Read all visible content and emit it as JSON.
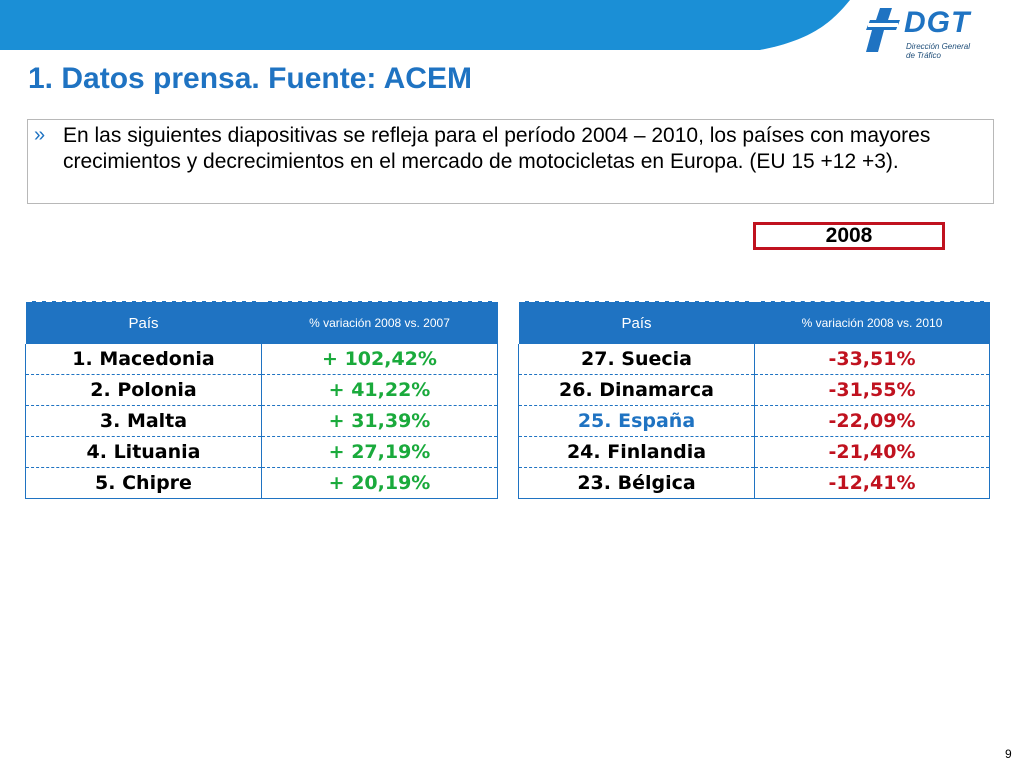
{
  "header": {
    "title": "1. Datos prensa. Fuente: ACEM",
    "logo_text": "DGT",
    "logo_subtitle_line1": "Dirección General",
    "logo_subtitle_line2": "de Tráfico"
  },
  "intro": {
    "bullet": "»",
    "text": "En las siguientes diapositivas se refleja para el período 2004 – 2010, los países con mayores crecimientos y decrecimientos en el mercado de motocicletas en Europa. (EU 15 +12 +3)."
  },
  "year_label": "2008",
  "colors": {
    "accent_blue": "#1f73c2",
    "positive_green": "#1aaa3c",
    "negative_red": "#c0121f",
    "highlight_blue": "#1f73c2"
  },
  "growth_table": {
    "headers": [
      "País",
      "% variación  2008 vs. 2007"
    ],
    "rows": [
      {
        "country": "1.   Macedonia",
        "variation": "+ 102,42%"
      },
      {
        "country": "2. Polonia",
        "variation": "+ 41,22%"
      },
      {
        "country": "3. Malta",
        "variation": "+ 31,39%"
      },
      {
        "country": "4. Lituania",
        "variation": "+ 27,19%"
      },
      {
        "country": "5. Chipre",
        "variation": "+ 20,19%"
      }
    ]
  },
  "decline_table": {
    "headers": [
      "País",
      "% variación 2008 vs.  2010"
    ],
    "rows": [
      {
        "country": "27. Suecia",
        "variation": "-33,51%"
      },
      {
        "country": "26. Dinamarca",
        "variation": "-31,55%"
      },
      {
        "country": "25. España",
        "variation": "-22,09%"
      },
      {
        "country": "24. Finlandia",
        "variation": "-21,40%"
      },
      {
        "country": "23. Bélgica",
        "variation": "-12,41%"
      }
    ]
  },
  "page_number": "9"
}
